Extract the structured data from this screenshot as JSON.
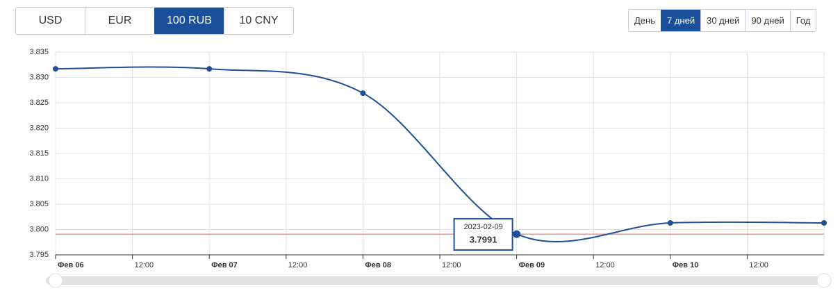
{
  "currency_tabs": [
    "USD",
    "EUR",
    "100 RUB",
    "10 CNY"
  ],
  "period_tabs": [
    "День",
    "7 дней",
    "30 дней",
    "90 дней",
    "Год"
  ],
  "chart_data": {
    "type": "line",
    "x": [
      0,
      1,
      2,
      3,
      4,
      5
    ],
    "xlim": [
      0,
      5
    ],
    "xticks": [
      {
        "value": 0,
        "label": "Фев 06"
      },
      {
        "value": 0.5,
        "label": "12:00"
      },
      {
        "value": 1,
        "label": "Фев 07"
      },
      {
        "value": 1.5,
        "label": "12:00"
      },
      {
        "value": 2,
        "label": "Фев 08"
      },
      {
        "value": 2.5,
        "label": "12:00"
      },
      {
        "value": 3,
        "label": "Фев 09"
      },
      {
        "value": 3.5,
        "label": "12:00"
      },
      {
        "value": 4,
        "label": "Фев 10"
      },
      {
        "value": 4.5,
        "label": "12:00"
      }
    ],
    "series": [
      {
        "color": "#1e4f97",
        "values": [
          3.8317,
          3.8317,
          3.8269,
          3.7991,
          3.8013,
          3.8013
        ]
      }
    ],
    "ylim": [
      3.795,
      3.835
    ],
    "yticks": [
      3.835,
      {
        "value": 3.83,
        "label": "3.830"
      },
      3.825,
      {
        "value": 3.82,
        "label": "3.820"
      },
      3.815,
      {
        "value": 3.81,
        "label": "3.810"
      },
      3.805,
      {
        "value": 3.8,
        "label": "3.800"
      },
      3.795
    ],
    "grid": true,
    "tooltip": {
      "date": "2023-02-09"
    }
  }
}
